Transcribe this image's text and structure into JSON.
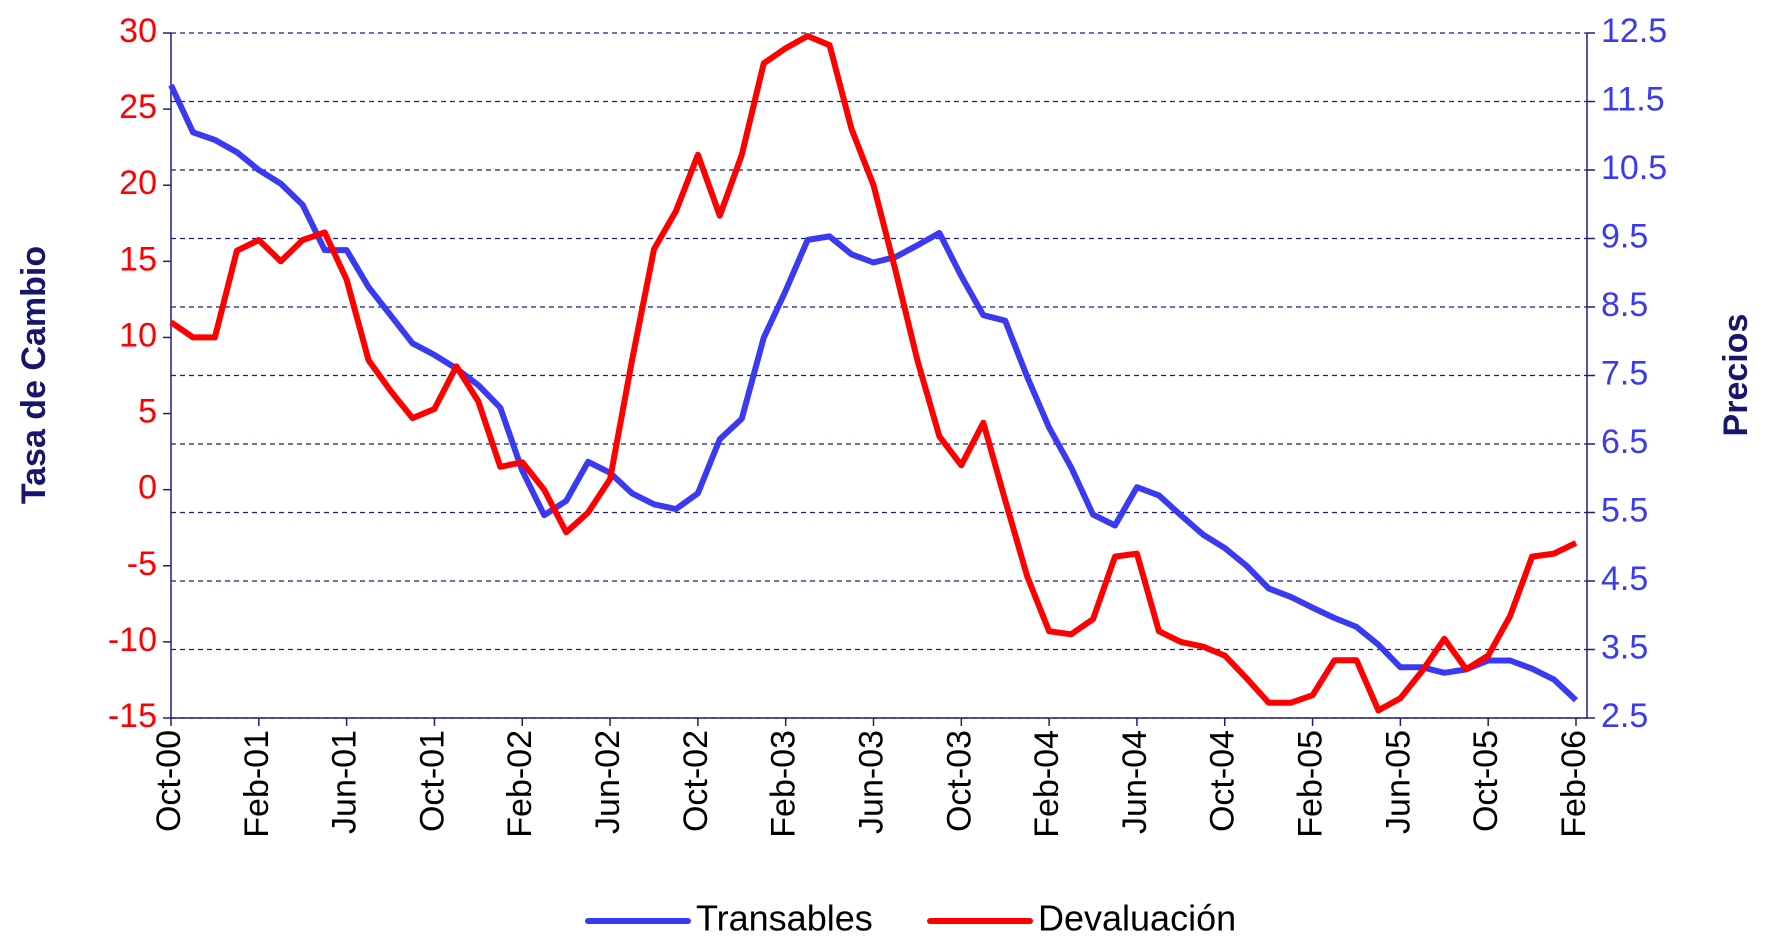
{
  "chart_data": {
    "type": "line",
    "ylabel": "Tasa de Cambio",
    "y2label": "Precios",
    "categories": [
      "Oct-00",
      null,
      null,
      null,
      "Feb-01",
      null,
      null,
      null,
      "Jun-01",
      null,
      null,
      null,
      "Oct-01",
      null,
      null,
      null,
      "Feb-02",
      null,
      null,
      null,
      "Jun-02",
      null,
      null,
      null,
      "Oct-02",
      null,
      null,
      null,
      "Feb-03",
      null,
      null,
      null,
      "Jun-03",
      null,
      null,
      null,
      "Oct-03",
      null,
      null,
      null,
      "Feb-04",
      null,
      null,
      null,
      "Jun-04",
      null,
      null,
      null,
      "Oct-04",
      null,
      null,
      null,
      "Feb-05",
      null,
      null,
      null,
      "Jun-05",
      null,
      null,
      null,
      "Oct-05",
      null,
      null,
      null,
      "Feb-06"
    ],
    "series": [
      {
        "name": "Transables",
        "color": "#3a3af2",
        "axis": "y2",
        "values": [
          11.74,
          11.05,
          10.94,
          10.76,
          10.5,
          10.3,
          9.99,
          9.33,
          9.33,
          8.79,
          8.38,
          7.97,
          7.8,
          7.6,
          7.36,
          7.03,
          6.11,
          5.46,
          5.67,
          6.24,
          6.08,
          5.78,
          5.62,
          5.55,
          5.78,
          6.57,
          6.87,
          8.05,
          8.74,
          9.48,
          9.53,
          9.27,
          9.15,
          9.23,
          9.4,
          9.58,
          8.95,
          8.38,
          8.3,
          7.48,
          6.74,
          6.16,
          5.47,
          5.31,
          5.87,
          5.75,
          5.46,
          5.18,
          4.98,
          4.72,
          4.39,
          4.27,
          4.11,
          3.96,
          3.83,
          3.57,
          3.24,
          3.24,
          3.16,
          3.21,
          3.34,
          3.34,
          3.22,
          3.06,
          2.76
        ]
      },
      {
        "name": "Devaluación",
        "color": "#ff0000",
        "axis": "y",
        "values": [
          11,
          10,
          10,
          15.7,
          16.4,
          15,
          16.4,
          16.9,
          13.8,
          8.5,
          6.5,
          4.7,
          5.3,
          8.1,
          5.8,
          1.5,
          1.8,
          0,
          -2.8,
          -1.5,
          0.7,
          8.5,
          15.8,
          18.3,
          22,
          18,
          22,
          28,
          29,
          29.8,
          29.2,
          23.7,
          20,
          14.4,
          8.5,
          3.5,
          1.6,
          4.4,
          -0.7,
          -5.7,
          -9.3,
          -9.5,
          -8.5,
          -4.4,
          -4.2,
          -9.3,
          -10,
          -10.3,
          -10.9,
          -12.4,
          -14,
          -14,
          -13.5,
          -11.2,
          -11.2,
          -14.5,
          -13.7,
          -11.9,
          -9.8,
          -11.8,
          -10.9,
          -8.3,
          -4.4,
          -4.2,
          -3.5
        ]
      }
    ],
    "ylim": [
      -15,
      30
    ],
    "yticks": [
      -15,
      -10,
      -5,
      0,
      5,
      10,
      15,
      20,
      25,
      30
    ],
    "y2lim": [
      2.5,
      12.5
    ],
    "y2ticks": [
      2.5,
      3.5,
      4.5,
      5.5,
      6.5,
      7.5,
      8.5,
      9.5,
      10.5,
      11.5,
      12.5
    ],
    "ytick_color": "#ff0000",
    "y2tick_color": "#3a3af2",
    "axis_title_color": "#16166e",
    "grid": true,
    "legend": "bottom"
  }
}
